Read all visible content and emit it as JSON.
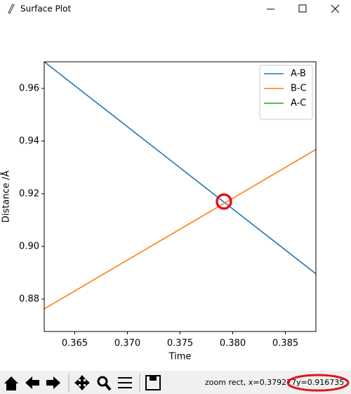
{
  "window": {
    "title": "Surface Plot"
  },
  "chart_data": {
    "type": "line",
    "xlabel": "Time",
    "ylabel": "Distance /Å",
    "x": [
      0.3621,
      0.3879
    ],
    "series": [
      {
        "name": "A-B",
        "color": "#1f77b4",
        "values": [
          0.9701,
          0.8896
        ]
      },
      {
        "name": "B-C",
        "color": "#ff7f0e",
        "values": [
          0.8763,
          0.9368
        ]
      },
      {
        "name": "A-C",
        "color": "#2ca02c",
        "values": [
          null,
          null
        ]
      }
    ],
    "xlim": [
      0.3621,
      0.3879
    ],
    "xticks": [
      0.365,
      {
        "value": 0.37,
        "label": "0.370"
      },
      0.375,
      {
        "value": 0.38,
        "label": "0.380"
      },
      0.385
    ],
    "ylim": [
      0.8677,
      0.9701
    ],
    "yticks": [
      0.88,
      {
        "value": 0.9,
        "label": "0.90"
      },
      0.92,
      0.94,
      0.96
    ],
    "legend": "upper right"
  },
  "status": {
    "mode_text": "zoom rect, x=0.379277",
    "y_text": "y=0.916735"
  }
}
